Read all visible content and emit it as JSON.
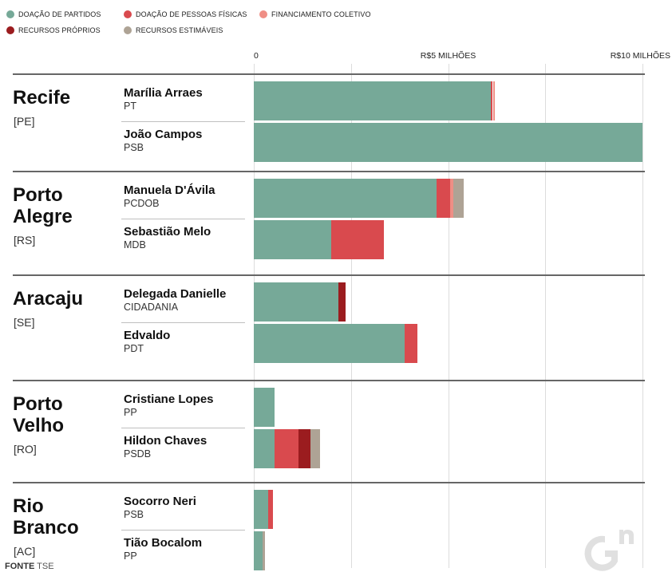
{
  "legend": [
    {
      "label": "DOAÇÃO DE PARTIDOS",
      "color": "#76a998"
    },
    {
      "label": "DOAÇÃO DE PESSOAS FÍSICAS",
      "color": "#d94a4e"
    },
    {
      "label": "FINANCIAMENTO COLETIVO",
      "color": "#ef8e85"
    },
    {
      "label": "RECURSOS PRÓPRIOS",
      "color": "#9b1c1f"
    },
    {
      "label": "RECURSOS ESTIMÁVEIS",
      "color": "#aea395"
    }
  ],
  "chart_data": {
    "type": "bar",
    "orientation": "horizontal",
    "stacked": true,
    "xlim": [
      0,
      10
    ],
    "ticks": [
      {
        "value": 0,
        "label": "0"
      },
      {
        "value": 5,
        "label": "R$5 MILHÕES"
      },
      {
        "value": 10,
        "label": "R$10 MILHÕES"
      }
    ],
    "gridlines": [
      0,
      2.5,
      5,
      7.5,
      10
    ],
    "series": [
      {
        "name": "DOAÇÃO DE PARTIDOS",
        "color": "#76a998"
      },
      {
        "name": "DOAÇÃO DE PESSOAS FÍSICAS",
        "color": "#d94a4e"
      },
      {
        "name": "FINANCIAMENTO COLETIVO",
        "color": "#ef8e85"
      },
      {
        "name": "RECURSOS PRÓPRIOS",
        "color": "#9b1c1f"
      },
      {
        "name": "RECURSOS ESTIMÁVEIS",
        "color": "#aea395"
      }
    ],
    "groups": [
      {
        "city": "Recife",
        "state": "[PE]",
        "candidates": [
          {
            "name": "Marília Arraes",
            "party": "PT",
            "values": [
              6.1,
              0.05,
              0.05,
              0,
              0
            ]
          },
          {
            "name": "João Campos",
            "party": "PSB",
            "values": [
              10.0,
              0,
              0,
              0,
              0
            ]
          }
        ]
      },
      {
        "city": "Porto Alegre",
        "state": "[RS]",
        "candidates": [
          {
            "name": "Manuela D'Ávila",
            "party": "PCDOB",
            "values": [
              4.7,
              0.36,
              0.08,
              0,
              0.26
            ]
          },
          {
            "name": "Sebastião Melo",
            "party": "MDB",
            "values": [
              2.0,
              1.34,
              0,
              0,
              0
            ]
          }
        ]
      },
      {
        "city": "Aracaju",
        "state": "[SE]",
        "candidates": [
          {
            "name": "Delegada Danielle",
            "party": "CIDADANIA",
            "values": [
              2.18,
              0,
              0,
              0.18,
              0
            ]
          },
          {
            "name": "Edvaldo",
            "party": "PDT",
            "values": [
              3.88,
              0.32,
              0,
              0,
              0
            ]
          }
        ]
      },
      {
        "city": "Porto Velho",
        "state": "[RO]",
        "candidates": [
          {
            "name": "Cristiane Lopes",
            "party": "PP",
            "values": [
              0.53,
              0,
              0,
              0,
              0
            ]
          },
          {
            "name": "Hildon Chaves",
            "party": "PSDB",
            "values": [
              0.54,
              0.6,
              0,
              0.32,
              0.24
            ]
          }
        ]
      },
      {
        "city": "Rio Branco",
        "state": "[AC]",
        "candidates": [
          {
            "name": "Socorro Neri",
            "party": "PSB",
            "values": [
              0.37,
              0.12,
              0,
              0,
              0
            ]
          },
          {
            "name": "Tião Bocalom",
            "party": "PP",
            "values": [
              0.22,
              0,
              0,
              0,
              0.06
            ]
          }
        ]
      }
    ]
  },
  "source": {
    "prefix": "FONTE",
    "text": "TSE"
  },
  "logo": {
    "icon": "gn-logo-icon"
  }
}
